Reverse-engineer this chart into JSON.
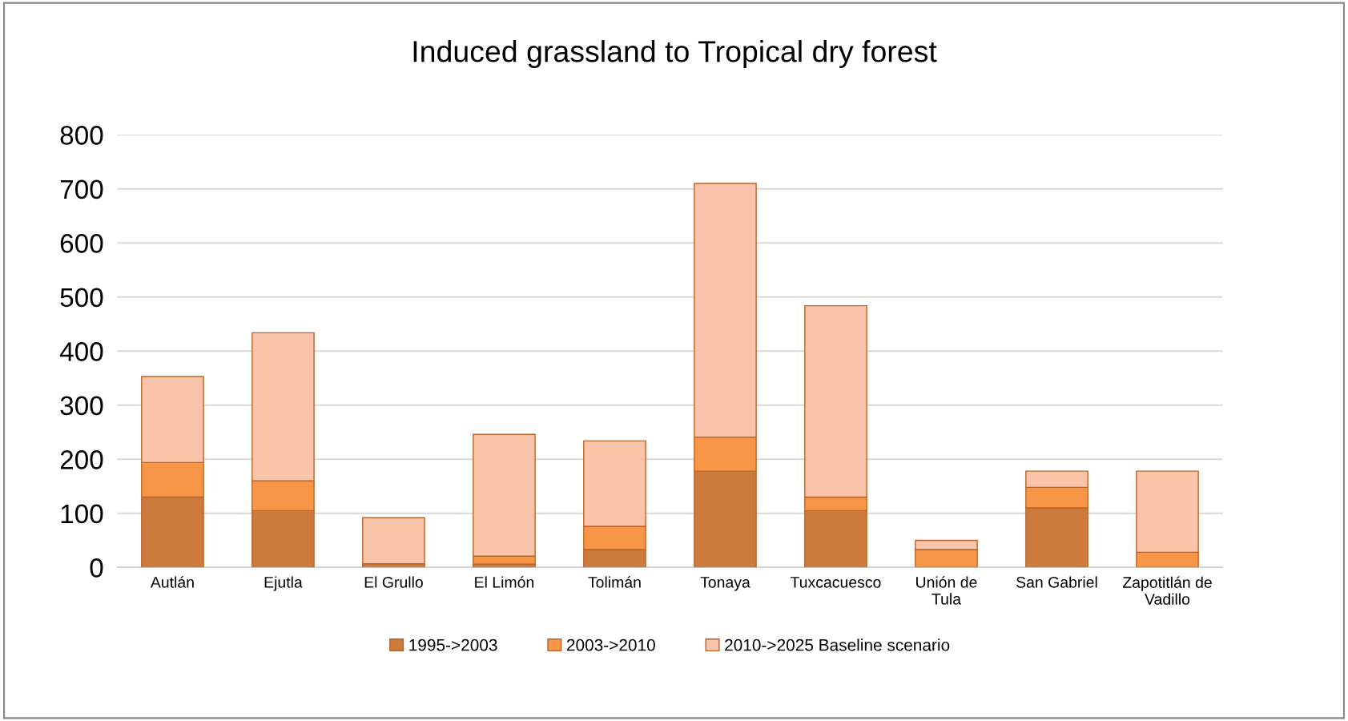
{
  "chart_data": {
    "type": "bar",
    "title": "Induced grassland to Tropical dry forest",
    "stacked": true,
    "categories": [
      "Autlán",
      "Ejutla",
      "El Grullo",
      "El Limón",
      "Tolimán",
      "Tonaya",
      "Tuxcacuesco",
      "Unión de\nTula",
      "San Gabriel",
      "Zapotitlán de\nVadillo"
    ],
    "series": [
      {
        "name": "1995->2003",
        "color": "#cc7b3c",
        "values": [
          130,
          105,
          7,
          6,
          33,
          178,
          105,
          0,
          110,
          0
        ]
      },
      {
        "name": "2003->2010",
        "color": "#f79646",
        "values": [
          64,
          55,
          null,
          15,
          43,
          63,
          25,
          33,
          38,
          28
        ]
      },
      {
        "name": "2010->2025 Baseline scenario",
        "color": "#f9c4a9",
        "values": [
          159,
          274,
          85,
          225,
          158,
          469,
          354,
          17,
          30,
          150
        ]
      }
    ],
    "ylim": [
      0,
      800
    ],
    "yticks": [
      0,
      100,
      200,
      300,
      400,
      500,
      600,
      700,
      800
    ],
    "grid": "y",
    "legend": "bottom"
  }
}
